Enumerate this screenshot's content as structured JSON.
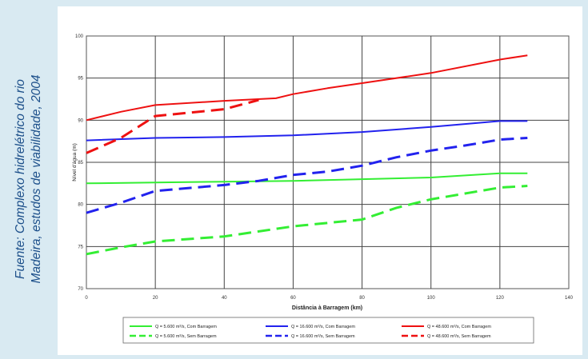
{
  "caption": {
    "line1": "Fuente: Complexo hidrelétrico do rio",
    "line2": "Madeira, estudos de viabilidade, 2004"
  },
  "chart_data": {
    "type": "line",
    "title": "",
    "xlabel": "Distância à Barragem (km)",
    "ylabel": "Nível d'água (m)",
    "xlim": [
      0,
      140
    ],
    "ylim": [
      70,
      100
    ],
    "xticks": [
      "0",
      "20",
      "40",
      "60",
      "80",
      "100",
      "120",
      "140"
    ],
    "yticks": [
      "70",
      "75",
      "80",
      "85",
      "90",
      "95",
      "100"
    ],
    "grid": true,
    "legend_position": "bottom",
    "series": [
      {
        "name": "Q = 5.600 m³/s, Com Barragem",
        "color": "#33ee33",
        "dashed": false,
        "x": [
          0,
          20,
          40,
          60,
          80,
          100,
          120,
          128
        ],
        "y": [
          82.5,
          82.6,
          82.7,
          82.8,
          83.0,
          83.2,
          83.7,
          83.7
        ]
      },
      {
        "name": "Q = 16.600 m³/s, Com Barragem",
        "color": "#2222ee",
        "dashed": false,
        "x": [
          0,
          20,
          40,
          60,
          80,
          100,
          120,
          128
        ],
        "y": [
          87.6,
          87.9,
          88.0,
          88.2,
          88.6,
          89.2,
          89.9,
          89.9
        ]
      },
      {
        "name": "Q = 48.600 m³/s, Com Barragem",
        "color": "#ee1111",
        "dashed": false,
        "x": [
          0,
          10,
          20,
          40,
          55,
          60,
          70,
          80,
          100,
          120,
          128
        ],
        "y": [
          90.0,
          91.0,
          91.8,
          92.3,
          92.6,
          93.1,
          93.8,
          94.4,
          95.6,
          97.2,
          97.7
        ]
      },
      {
        "name": "Q = 5.600 m³/s, Sem Barragem",
        "color": "#33ee33",
        "dashed": true,
        "x": [
          0,
          10,
          20,
          40,
          60,
          70,
          80,
          90,
          100,
          120,
          128
        ],
        "y": [
          74.1,
          74.9,
          75.6,
          76.2,
          77.4,
          77.8,
          78.2,
          79.6,
          80.6,
          82.0,
          82.2
        ]
      },
      {
        "name": "Q = 16.600 m³/s, Sem Barragem",
        "color": "#2222ee",
        "dashed": true,
        "x": [
          0,
          10,
          20,
          40,
          50,
          60,
          70,
          80,
          90,
          100,
          110,
          120,
          128
        ],
        "y": [
          79.0,
          80.2,
          81.6,
          82.3,
          82.8,
          83.5,
          83.9,
          84.6,
          85.6,
          86.4,
          87.0,
          87.7,
          87.9
        ]
      },
      {
        "name": "Q = 48.600 m³/s, Sem Barragem",
        "color": "#ee1111",
        "dashed": true,
        "x": [
          0,
          10,
          20,
          40,
          50
        ],
        "y": [
          86.1,
          87.9,
          90.5,
          91.3,
          92.4
        ]
      }
    ]
  }
}
